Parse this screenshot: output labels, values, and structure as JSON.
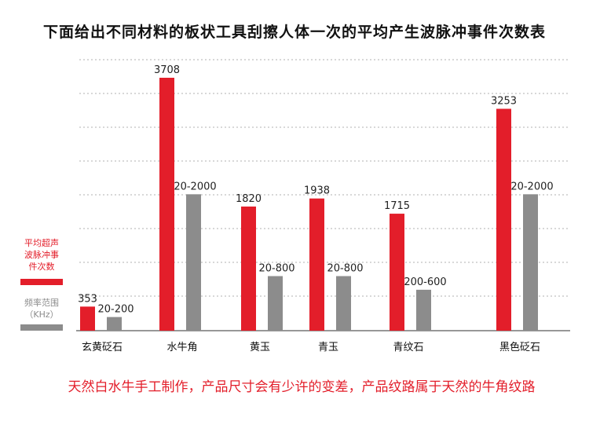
{
  "title": "下面给出不同材料的板状工具刮擦人体一次的平均产生波脉冲事件次数表",
  "footnote": "天然白水牛手工制作，产品尺寸会有少许的变差，产品纹路属于天然的牛角纹路",
  "colors": {
    "pulse": "#e31e2a",
    "freq": "#8c8c8c",
    "grid": "#b0b0b0",
    "axis": "#777777"
  },
  "legend": {
    "pulse": {
      "label_lines": [
        "平均超声",
        "波脉冲事",
        "件次数"
      ],
      "color": "#e31e2a"
    },
    "freq": {
      "label_lines": [
        "频率范围",
        "（KHz）"
      ],
      "color": "#8c8c8c"
    }
  },
  "chart_data": {
    "type": "bar",
    "categories": [
      "玄黄砭石",
      "水牛角",
      "黄玉",
      "青玉",
      "青纹石",
      "黑色砭石"
    ],
    "ylim": [
      0,
      3750
    ],
    "grid": true,
    "legend_position": "left",
    "series": [
      {
        "name": "平均超声波脉冲事件次数",
        "color": "#e31e2a",
        "values": [
          353,
          3708,
          1820,
          1938,
          1715,
          3253
        ],
        "labels": [
          "353",
          "3708",
          "1820",
          "1938",
          "1715",
          "3253"
        ]
      },
      {
        "name": "频率范围（KHz）",
        "color": "#8c8c8c",
        "values": [
          200,
          2000,
          800,
          800,
          600,
          2000
        ],
        "labels": [
          "20-200",
          "20-2000",
          "20-800",
          "20-800",
          "200-600",
          "20-2000"
        ]
      }
    ]
  }
}
